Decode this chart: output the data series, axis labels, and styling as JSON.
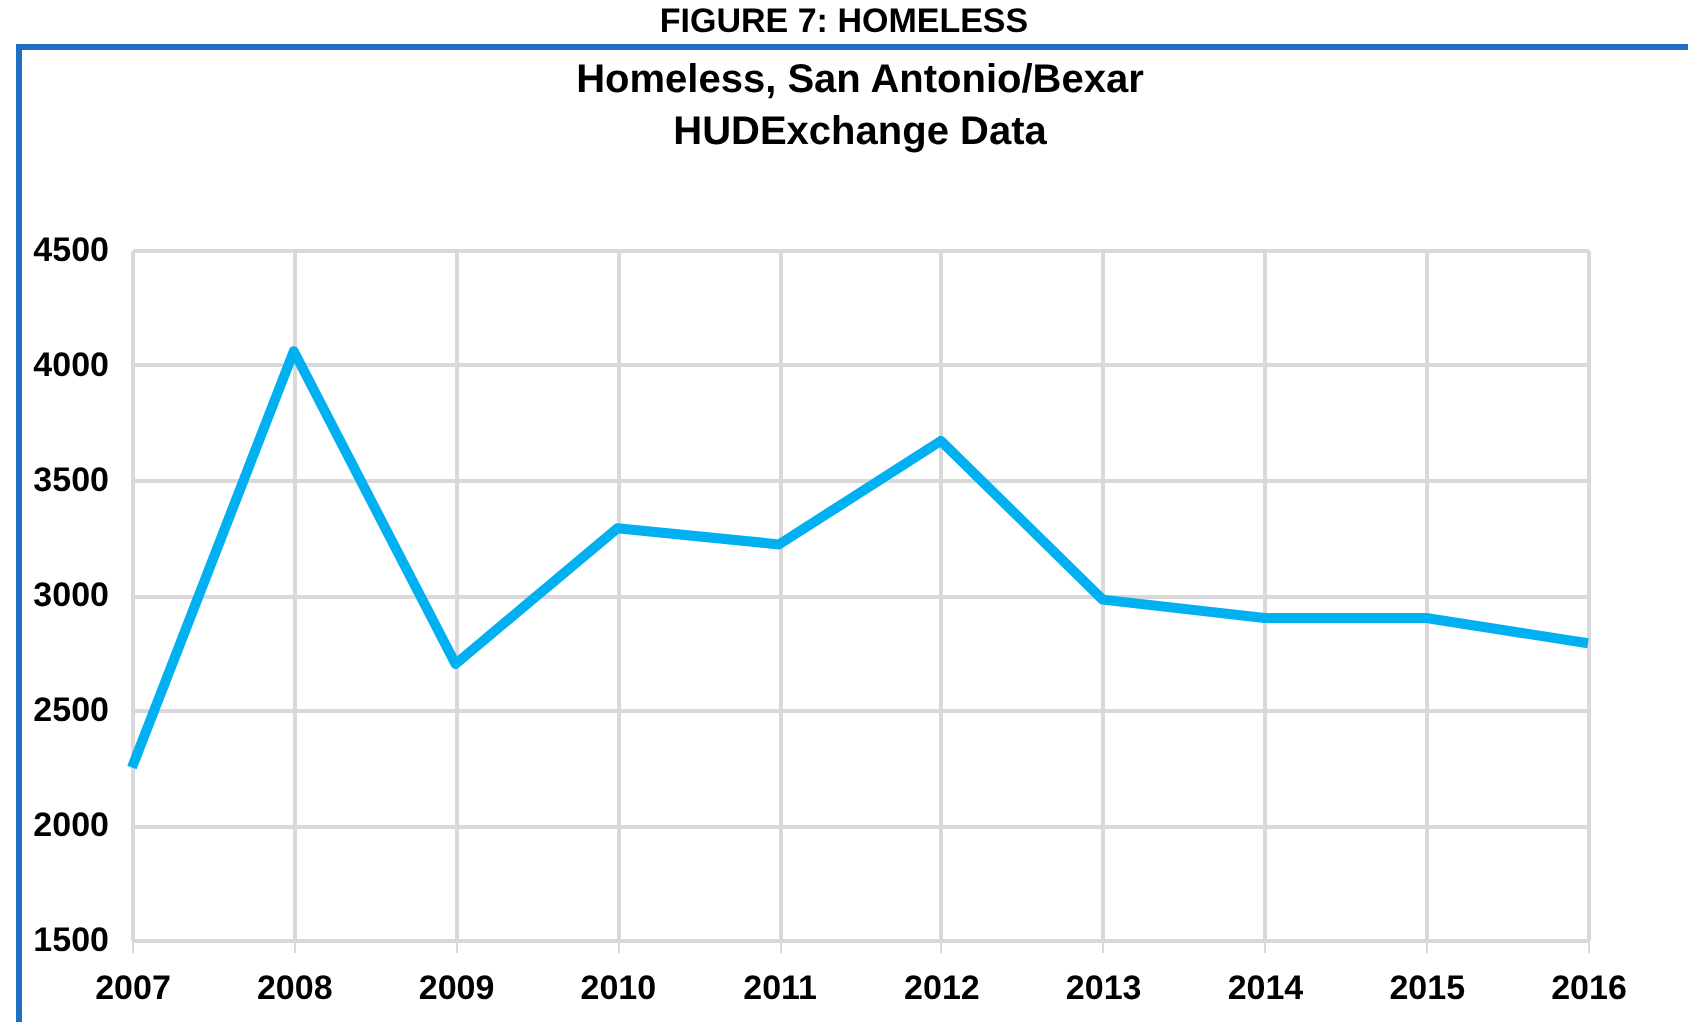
{
  "chart_data": {
    "type": "line",
    "title": "Homeless, San Antonio/Bexar",
    "subtitle": "HUDExchange Data",
    "annotations": [
      "FIGURE 7: HOMELESS"
    ],
    "categories": [
      "2007",
      "2008",
      "2009",
      "2010",
      "2011",
      "2012",
      "2013",
      "2014",
      "2015",
      "2016"
    ],
    "series": [
      {
        "color": "#00b0f0",
        "values": [
          2250,
          4060,
          2700,
          3290,
          3220,
          3670,
          2980,
          2900,
          2900,
          2790
        ]
      }
    ],
    "ylim": [
      1500,
      4500
    ],
    "yticks": [
      1500,
      2000,
      2500,
      3000,
      3500,
      4000,
      4500
    ],
    "grid": true,
    "legend": false,
    "marker": "none",
    "line_style": "solid"
  }
}
